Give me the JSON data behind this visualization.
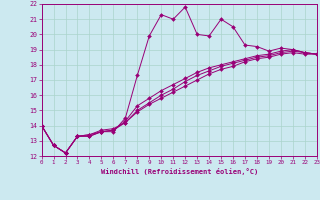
{
  "xlabel": "Windchill (Refroidissement éolien,°C)",
  "bg_color": "#cce9f0",
  "grid_color": "#aad4cc",
  "line_color": "#990077",
  "xlim": [
    0,
    23
  ],
  "ylim": [
    12,
    22
  ],
  "xticks": [
    0,
    1,
    2,
    3,
    4,
    5,
    6,
    7,
    8,
    9,
    10,
    11,
    12,
    13,
    14,
    15,
    16,
    17,
    18,
    19,
    20,
    21,
    22,
    23
  ],
  "yticks": [
    12,
    13,
    14,
    15,
    16,
    17,
    18,
    19,
    20,
    21,
    22
  ],
  "series": [
    [
      14.0,
      12.7,
      12.2,
      13.3,
      13.3,
      13.6,
      13.6,
      14.5,
      17.3,
      19.9,
      21.3,
      21.0,
      21.8,
      20.0,
      19.9,
      21.0,
      20.5,
      19.3,
      19.2,
      18.9,
      19.1,
      19.0,
      18.8,
      18.7
    ],
    [
      14.0,
      12.7,
      12.2,
      13.3,
      13.3,
      13.6,
      13.7,
      14.3,
      15.3,
      15.8,
      16.3,
      16.7,
      17.1,
      17.5,
      17.8,
      18.0,
      18.2,
      18.4,
      18.6,
      18.7,
      18.9,
      19.0,
      18.8,
      18.7
    ],
    [
      14.0,
      12.7,
      12.2,
      13.3,
      13.4,
      13.6,
      13.7,
      14.2,
      15.0,
      15.5,
      16.0,
      16.4,
      16.9,
      17.3,
      17.6,
      17.9,
      18.1,
      18.3,
      18.5,
      18.6,
      18.8,
      18.9,
      18.8,
      18.7
    ],
    [
      14.0,
      12.7,
      12.2,
      13.3,
      13.4,
      13.7,
      13.8,
      14.2,
      14.9,
      15.4,
      15.8,
      16.2,
      16.6,
      17.0,
      17.4,
      17.7,
      17.9,
      18.2,
      18.4,
      18.5,
      18.7,
      18.8,
      18.7,
      18.7
    ]
  ]
}
